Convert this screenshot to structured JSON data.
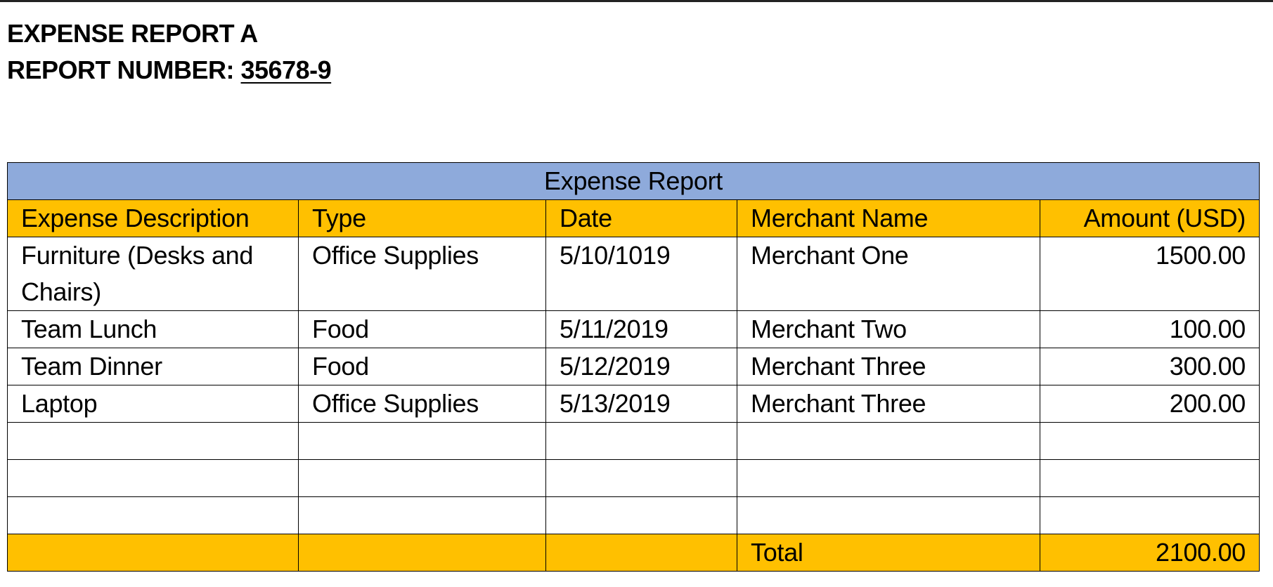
{
  "document": {
    "title": "EXPENSE REPORT A",
    "report_number_label": "REPORT NUMBER:",
    "report_number_value": "35678-9"
  },
  "table": {
    "title": "Expense Report",
    "columns": [
      "Expense Description",
      "Type",
      "Date",
      "Merchant Name",
      "Amount (USD)"
    ],
    "rows": [
      {
        "description": "Furniture (Desks and Chairs)",
        "type": "Office Supplies",
        "date": "5/10/1019",
        "merchant": "Merchant One",
        "amount": "1500.00"
      },
      {
        "description": "Team Lunch",
        "type": "Food",
        "date": "5/11/2019",
        "merchant": "Merchant Two",
        "amount": "100.00"
      },
      {
        "description": "Team Dinner",
        "type": "Food",
        "date": "5/12/2019",
        "merchant": "Merchant Three",
        "amount": "300.00"
      },
      {
        "description": "Laptop",
        "type": "Office Supplies",
        "date": "5/13/2019",
        "merchant": "Merchant Three",
        "amount": "200.00"
      }
    ],
    "empty_row_count": 3,
    "total_label": "Total",
    "total_value": "2100.00"
  },
  "colors": {
    "title_bar": "#8eaadb",
    "header_fill": "#ffc000",
    "total_fill": "#ffc000",
    "border": "#000000"
  }
}
